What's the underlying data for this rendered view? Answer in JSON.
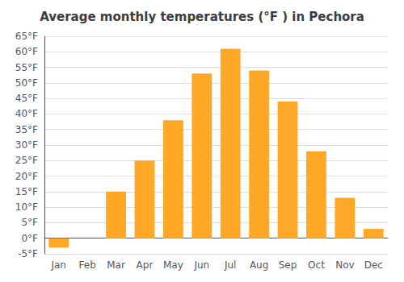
{
  "chart_data": {
    "type": "bar",
    "title": "Average monthly temperatures (°F ) in Pechora",
    "categories": [
      "Jan",
      "Feb",
      "Mar",
      "Apr",
      "May",
      "Jun",
      "Jul",
      "Aug",
      "Sep",
      "Oct",
      "Nov",
      "Dec"
    ],
    "values": [
      -3,
      0,
      15,
      25,
      38,
      53,
      61,
      54,
      44,
      28,
      13,
      3
    ],
    "color": "#FFA726",
    "ylim": [
      -5,
      65
    ],
    "yticks": [
      {
        "value": -5,
        "label": "-5°F"
      },
      {
        "value": 0,
        "label": "0°F"
      },
      {
        "value": 5,
        "label": "5°F"
      },
      {
        "value": 10,
        "label": "10°F"
      },
      {
        "value": 15,
        "label": "15°F"
      },
      {
        "value": 20,
        "label": "20°F"
      },
      {
        "value": 25,
        "label": "25°F"
      },
      {
        "value": 30,
        "label": "30°F"
      },
      {
        "value": 35,
        "label": "35°F"
      },
      {
        "value": 40,
        "label": "40°F"
      },
      {
        "value": 45,
        "label": "45°F"
      },
      {
        "value": 50,
        "label": "50°F"
      },
      {
        "value": 55,
        "label": "55°F"
      },
      {
        "value": 60,
        "label": "60°F"
      },
      {
        "value": 65,
        "label": "65°F"
      }
    ],
    "grid": true
  }
}
